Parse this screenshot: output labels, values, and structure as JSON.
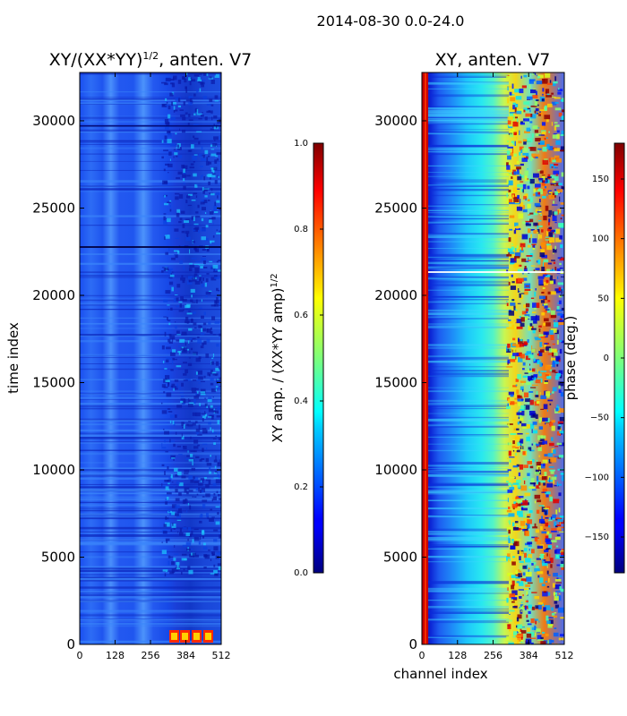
{
  "suptitle": "2014-08-30 0.0-24.0",
  "chart_data": [
    {
      "type": "heatmap",
      "title_main": "XY/(XX*YY)",
      "title_sup": "1/2",
      "title_tail": ", anten. V7",
      "xlabel": "",
      "ylabel": "time index",
      "xlim": [
        0,
        512
      ],
      "ylim": [
        0,
        32768
      ],
      "x_ticks": [
        0,
        128,
        256,
        384,
        512
      ],
      "y_ticks": [
        0,
        5000,
        10000,
        15000,
        20000,
        25000,
        30000
      ],
      "colorbar": {
        "label_main": "XY amp. / (XX*YY amp)",
        "label_sup": "1/2",
        "range": [
          0,
          1
        ],
        "ticks": [
          "0.0",
          "0.2",
          "0.4",
          "0.6",
          "0.8",
          "1.0"
        ],
        "colormap": "jet"
      }
    },
    {
      "type": "heatmap",
      "title_main": "XY, anten. V7",
      "xlabel": "channel index",
      "ylabel": "",
      "xlim": [
        0,
        512
      ],
      "ylim": [
        0,
        32768
      ],
      "x_ticks": [
        0,
        128,
        256,
        384,
        512
      ],
      "y_ticks": [
        0,
        5000,
        10000,
        15000,
        20000,
        25000,
        30000
      ],
      "colorbar": {
        "label_main": "phase (deg.)",
        "range": [
          -180,
          180
        ],
        "ticks": [
          "-150",
          "-100",
          "-50",
          "0",
          "50",
          "100",
          "150"
        ],
        "colormap": "jet"
      }
    }
  ]
}
